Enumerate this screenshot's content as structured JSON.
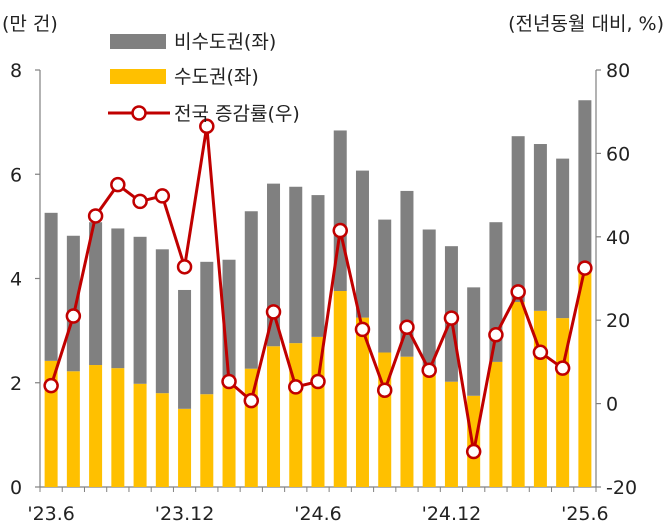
{
  "chart_data": {
    "type": "bar",
    "stacked": true,
    "left_axis_label": "(만 건)",
    "right_axis_label": "(전년동월 대비, %)",
    "left_ylim": [
      0,
      8
    ],
    "left_ticks": [
      "0",
      "2",
      "4",
      "6",
      "8"
    ],
    "right_ylim": [
      -20,
      80
    ],
    "right_ticks": [
      "-20",
      "0",
      "20",
      "40",
      "60",
      "80"
    ],
    "x_tick_labels": [
      {
        "index": 0,
        "label": "'23.6"
      },
      {
        "index": 6,
        "label": "'23.12"
      },
      {
        "index": 12,
        "label": "'24.6"
      },
      {
        "index": 18,
        "label": "'24.12"
      },
      {
        "index": 24,
        "label": "'25.6"
      }
    ],
    "categories": [
      "'23.6",
      "'23.7",
      "'23.8",
      "'23.9",
      "'23.10",
      "'23.11",
      "'23.12",
      "'24.1",
      "'24.2",
      "'24.3",
      "'24.4",
      "'24.5",
      "'24.6",
      "'24.7",
      "'24.8",
      "'24.9",
      "'24.10",
      "'24.11",
      "'24.12",
      "'25.1",
      "'25.2",
      "'25.3",
      "'25.4",
      "'25.5",
      "'25.6"
    ],
    "series": [
      {
        "name": "수도권(좌)",
        "kind": "bar",
        "axis": "left",
        "color": "#FFC000",
        "values": [
          2.42,
          2.22,
          2.34,
          2.28,
          1.98,
          1.8,
          1.5,
          1.78,
          1.96,
          2.27,
          2.7,
          2.76,
          2.88,
          3.76,
          3.25,
          2.58,
          2.5,
          2.26,
          2.02,
          1.75,
          2.4,
          3.55,
          3.38,
          3.24,
          4.12
        ]
      },
      {
        "name": "비수도권(좌)",
        "kind": "bar",
        "axis": "left",
        "color": "#808080",
        "values": [
          2.84,
          2.6,
          2.74,
          2.68,
          2.82,
          2.76,
          2.28,
          2.54,
          2.4,
          3.02,
          3.12,
          3.0,
          2.72,
          3.08,
          2.82,
          2.55,
          3.18,
          2.68,
          2.6,
          2.08,
          2.68,
          3.18,
          3.2,
          3.06,
          3.3
        ]
      },
      {
        "name": "전국 증감률(우)",
        "kind": "line",
        "axis": "right",
        "color": "#C00000",
        "values": [
          4.3,
          21.0,
          45.0,
          52.5,
          48.5,
          49.8,
          32.8,
          66.5,
          5.3,
          0.7,
          22.0,
          4.0,
          5.3,
          41.5,
          17.8,
          3.2,
          18.3,
          8.0,
          20.5,
          -11.5,
          16.5,
          26.8,
          12.3,
          8.5,
          32.5
        ]
      }
    ],
    "legend": {
      "items": [
        {
          "label": "비수도권(좌)",
          "marker": "bar",
          "color": "#808080"
        },
        {
          "label": "수도권(좌)",
          "marker": "bar",
          "color": "#FFC000"
        },
        {
          "label": "전국 증감률(우)",
          "marker": "line",
          "color": "#C00000"
        }
      ],
      "placement": "top-left"
    }
  }
}
